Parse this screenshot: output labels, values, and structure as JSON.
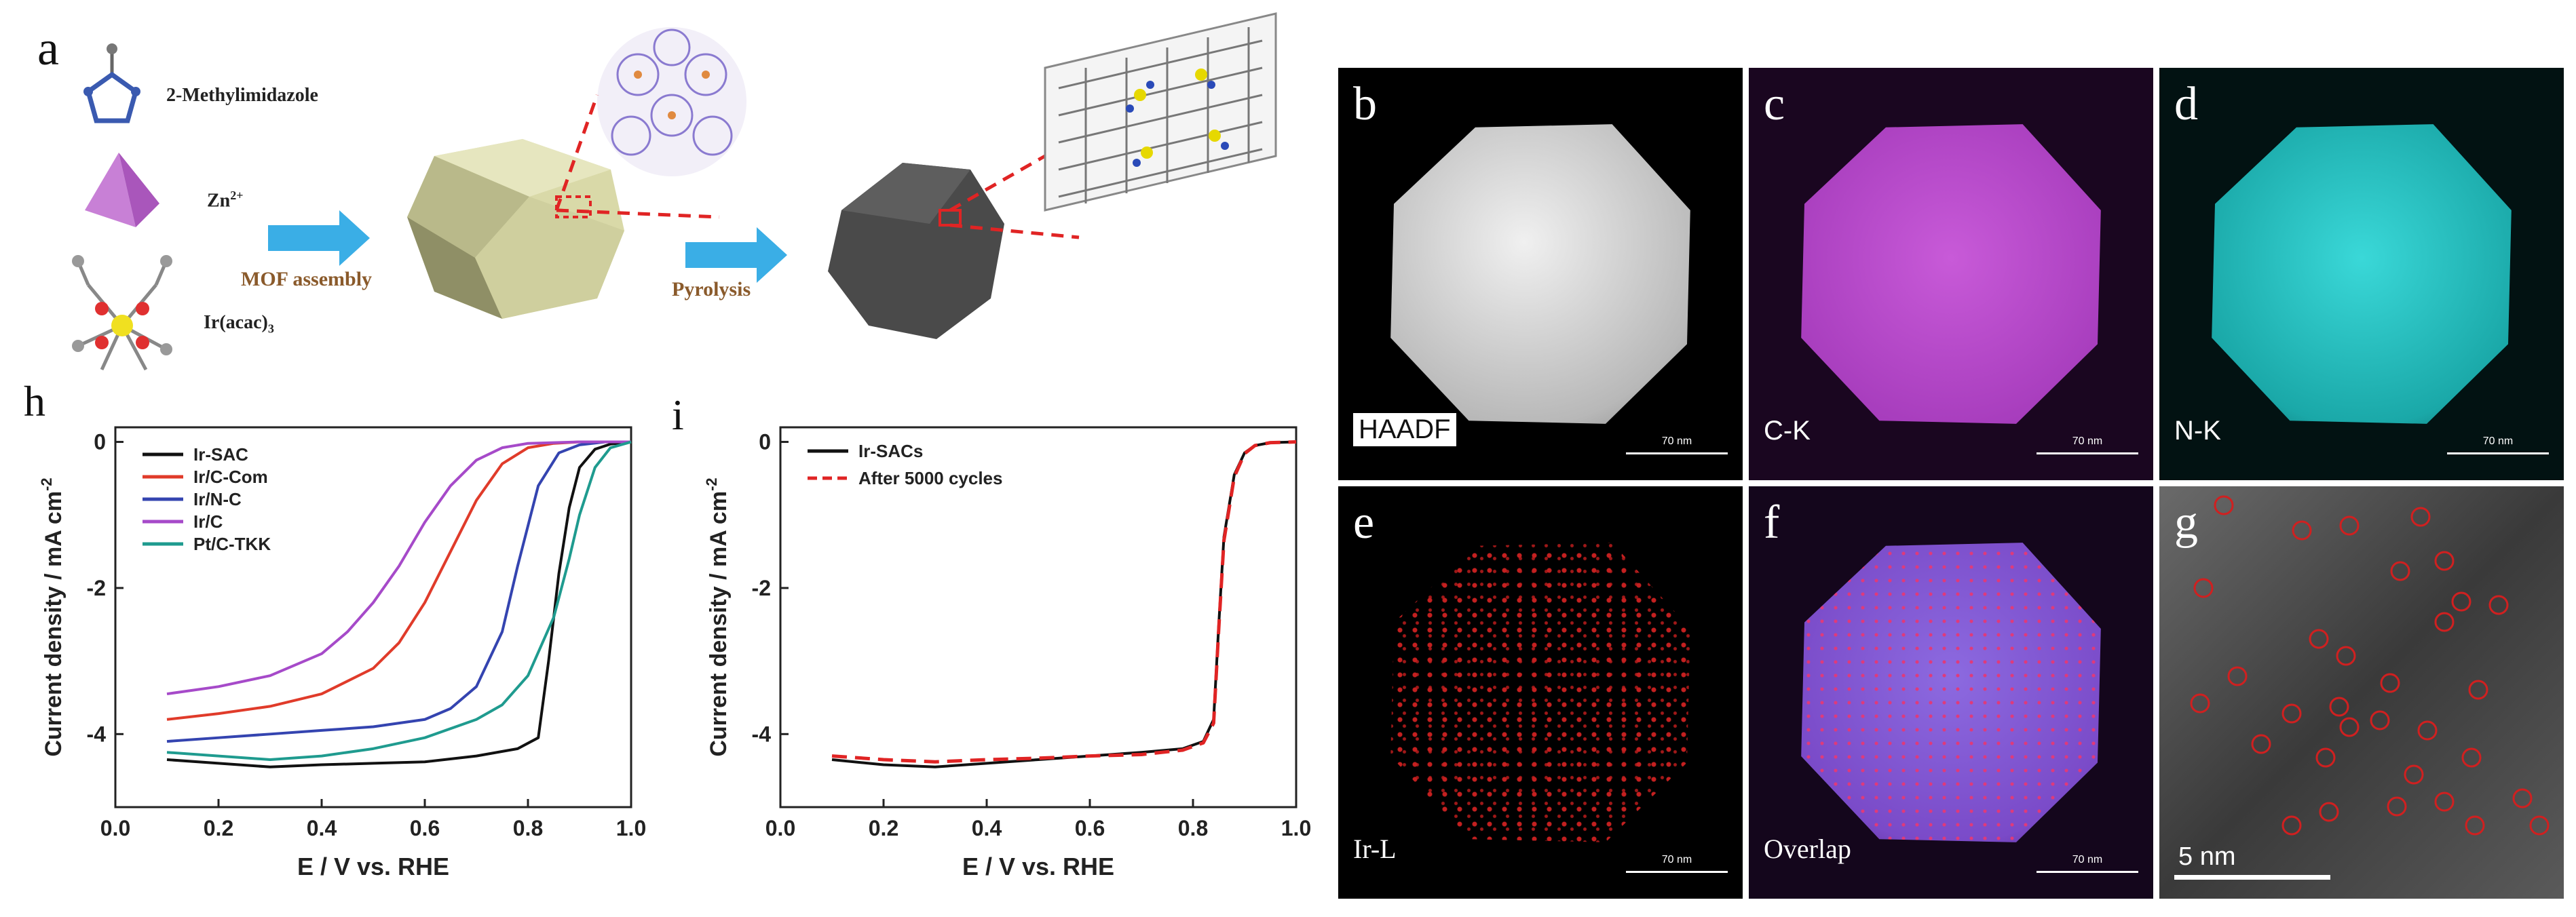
{
  "panels": {
    "a": "a",
    "b": "b",
    "c": "c",
    "d": "d",
    "e": "e",
    "f": "f",
    "g": "g",
    "h": "h",
    "i": "i"
  },
  "schematic": {
    "ligand_label": "2-Methylimidazole",
    "zinc_label": "Zn",
    "zinc_superscript": "2+",
    "iridium_label": "Ir(acac)",
    "iridium_subscript": "3",
    "step1_label": "MOF assembly",
    "step2_label": "Pyrolysis",
    "colors": {
      "arrow": "#3aaee6",
      "step_text": "#8a5a2b",
      "mof": "#d9d9a8",
      "carbon": "#4a4a4a",
      "dash": "#e02424"
    }
  },
  "micrographs": [
    {
      "letter": "b",
      "label": "HAADF",
      "scale": "70 nm",
      "color": "#d8d8d8"
    },
    {
      "letter": "c",
      "label": "C-K",
      "scale": "70 nm",
      "color": "#b246c8"
    },
    {
      "letter": "d",
      "label": "N-K",
      "scale": "70 nm",
      "color": "#27c4c4"
    },
    {
      "letter": "e",
      "label": "Ir-L",
      "scale": "70 nm",
      "color": "#d42a2a"
    },
    {
      "letter": "f",
      "label": "Overlap",
      "scale": "70 nm",
      "color": "#8c5ad8"
    },
    {
      "letter": "g",
      "label": "",
      "scale": "5 nm",
      "color": "#888888"
    }
  ],
  "chart_data": [
    {
      "type": "line",
      "panel": "h",
      "xlabel": "E / V vs. RHE",
      "ylabel": "Current density / mA cm",
      "ylabel_superscript": "-2",
      "xlim": [
        0.0,
        1.0
      ],
      "ylim": [
        -5,
        0.2
      ],
      "xticks": [
        "0.0",
        "0.2",
        "0.4",
        "0.6",
        "0.8",
        "1.0"
      ],
      "yticks": [
        "0",
        "-2",
        "-4"
      ],
      "legend_position": "top-left",
      "series": [
        {
          "name": "Ir-SAC",
          "color": "#111111",
          "x": [
            0.1,
            0.2,
            0.3,
            0.4,
            0.5,
            0.6,
            0.7,
            0.78,
            0.82,
            0.84,
            0.86,
            0.88,
            0.9,
            0.93,
            0.96,
            1.0
          ],
          "y": [
            -4.35,
            -4.4,
            -4.45,
            -4.42,
            -4.4,
            -4.38,
            -4.3,
            -4.2,
            -4.05,
            -3.0,
            -1.8,
            -0.9,
            -0.35,
            -0.1,
            -0.03,
            0.0
          ]
        },
        {
          "name": "Ir/C-Com",
          "color": "#e03b2a",
          "x": [
            0.1,
            0.2,
            0.3,
            0.4,
            0.5,
            0.55,
            0.6,
            0.65,
            0.7,
            0.75,
            0.8,
            0.85,
            0.9,
            1.0
          ],
          "y": [
            -3.8,
            -3.72,
            -3.62,
            -3.45,
            -3.1,
            -2.75,
            -2.2,
            -1.5,
            -0.8,
            -0.3,
            -0.08,
            -0.02,
            0.0,
            0.0
          ]
        },
        {
          "name": "Ir/N-C",
          "color": "#3444b0",
          "x": [
            0.1,
            0.2,
            0.3,
            0.4,
            0.5,
            0.6,
            0.65,
            0.7,
            0.75,
            0.78,
            0.82,
            0.86,
            0.9,
            0.95,
            1.0
          ],
          "y": [
            -4.1,
            -4.05,
            -4.0,
            -3.95,
            -3.9,
            -3.8,
            -3.65,
            -3.35,
            -2.6,
            -1.7,
            -0.6,
            -0.15,
            -0.04,
            0.0,
            0.0
          ]
        },
        {
          "name": "Ir/C",
          "color": "#a64ac9",
          "x": [
            0.1,
            0.2,
            0.3,
            0.4,
            0.45,
            0.5,
            0.55,
            0.6,
            0.65,
            0.7,
            0.75,
            0.8,
            0.9,
            1.0
          ],
          "y": [
            -3.45,
            -3.35,
            -3.2,
            -2.9,
            -2.6,
            -2.2,
            -1.7,
            -1.1,
            -0.6,
            -0.25,
            -0.08,
            -0.02,
            0.0,
            0.0
          ]
        },
        {
          "name": "Pt/C-TKK",
          "color": "#1f9b8f",
          "x": [
            0.1,
            0.2,
            0.3,
            0.4,
            0.5,
            0.6,
            0.7,
            0.75,
            0.8,
            0.85,
            0.88,
            0.9,
            0.93,
            0.96,
            1.0
          ],
          "y": [
            -4.25,
            -4.3,
            -4.35,
            -4.3,
            -4.2,
            -4.05,
            -3.8,
            -3.6,
            -3.2,
            -2.4,
            -1.6,
            -1.0,
            -0.35,
            -0.08,
            0.0
          ]
        }
      ]
    },
    {
      "type": "line",
      "panel": "i",
      "xlabel": "E / V vs. RHE",
      "ylabel": "Current density / mA cm",
      "ylabel_superscript": "-2",
      "xlim": [
        0.0,
        1.0
      ],
      "ylim": [
        -5,
        0.2
      ],
      "xticks": [
        "0.0",
        "0.2",
        "0.4",
        "0.6",
        "0.8",
        "1.0"
      ],
      "yticks": [
        "0",
        "-2",
        "-4"
      ],
      "legend_position": "top-left",
      "series": [
        {
          "name": "Ir-SACs",
          "color": "#111111",
          "dash": false,
          "x": [
            0.1,
            0.2,
            0.3,
            0.4,
            0.5,
            0.6,
            0.7,
            0.78,
            0.82,
            0.84,
            0.85,
            0.86,
            0.88,
            0.9,
            0.92,
            0.95,
            1.0
          ],
          "y": [
            -4.35,
            -4.42,
            -4.45,
            -4.4,
            -4.35,
            -4.3,
            -4.25,
            -4.2,
            -4.1,
            -3.8,
            -2.5,
            -1.3,
            -0.45,
            -0.15,
            -0.05,
            -0.01,
            0.0
          ]
        },
        {
          "name": "After 5000 cycles",
          "color": "#e02424",
          "dash": true,
          "x": [
            0.1,
            0.2,
            0.3,
            0.4,
            0.5,
            0.6,
            0.7,
            0.78,
            0.82,
            0.84,
            0.85,
            0.86,
            0.88,
            0.9,
            0.92,
            0.95,
            1.0
          ],
          "y": [
            -4.3,
            -4.35,
            -4.38,
            -4.35,
            -4.33,
            -4.3,
            -4.28,
            -4.22,
            -4.12,
            -3.85,
            -2.55,
            -1.35,
            -0.48,
            -0.16,
            -0.05,
            -0.01,
            0.0
          ]
        }
      ]
    }
  ]
}
